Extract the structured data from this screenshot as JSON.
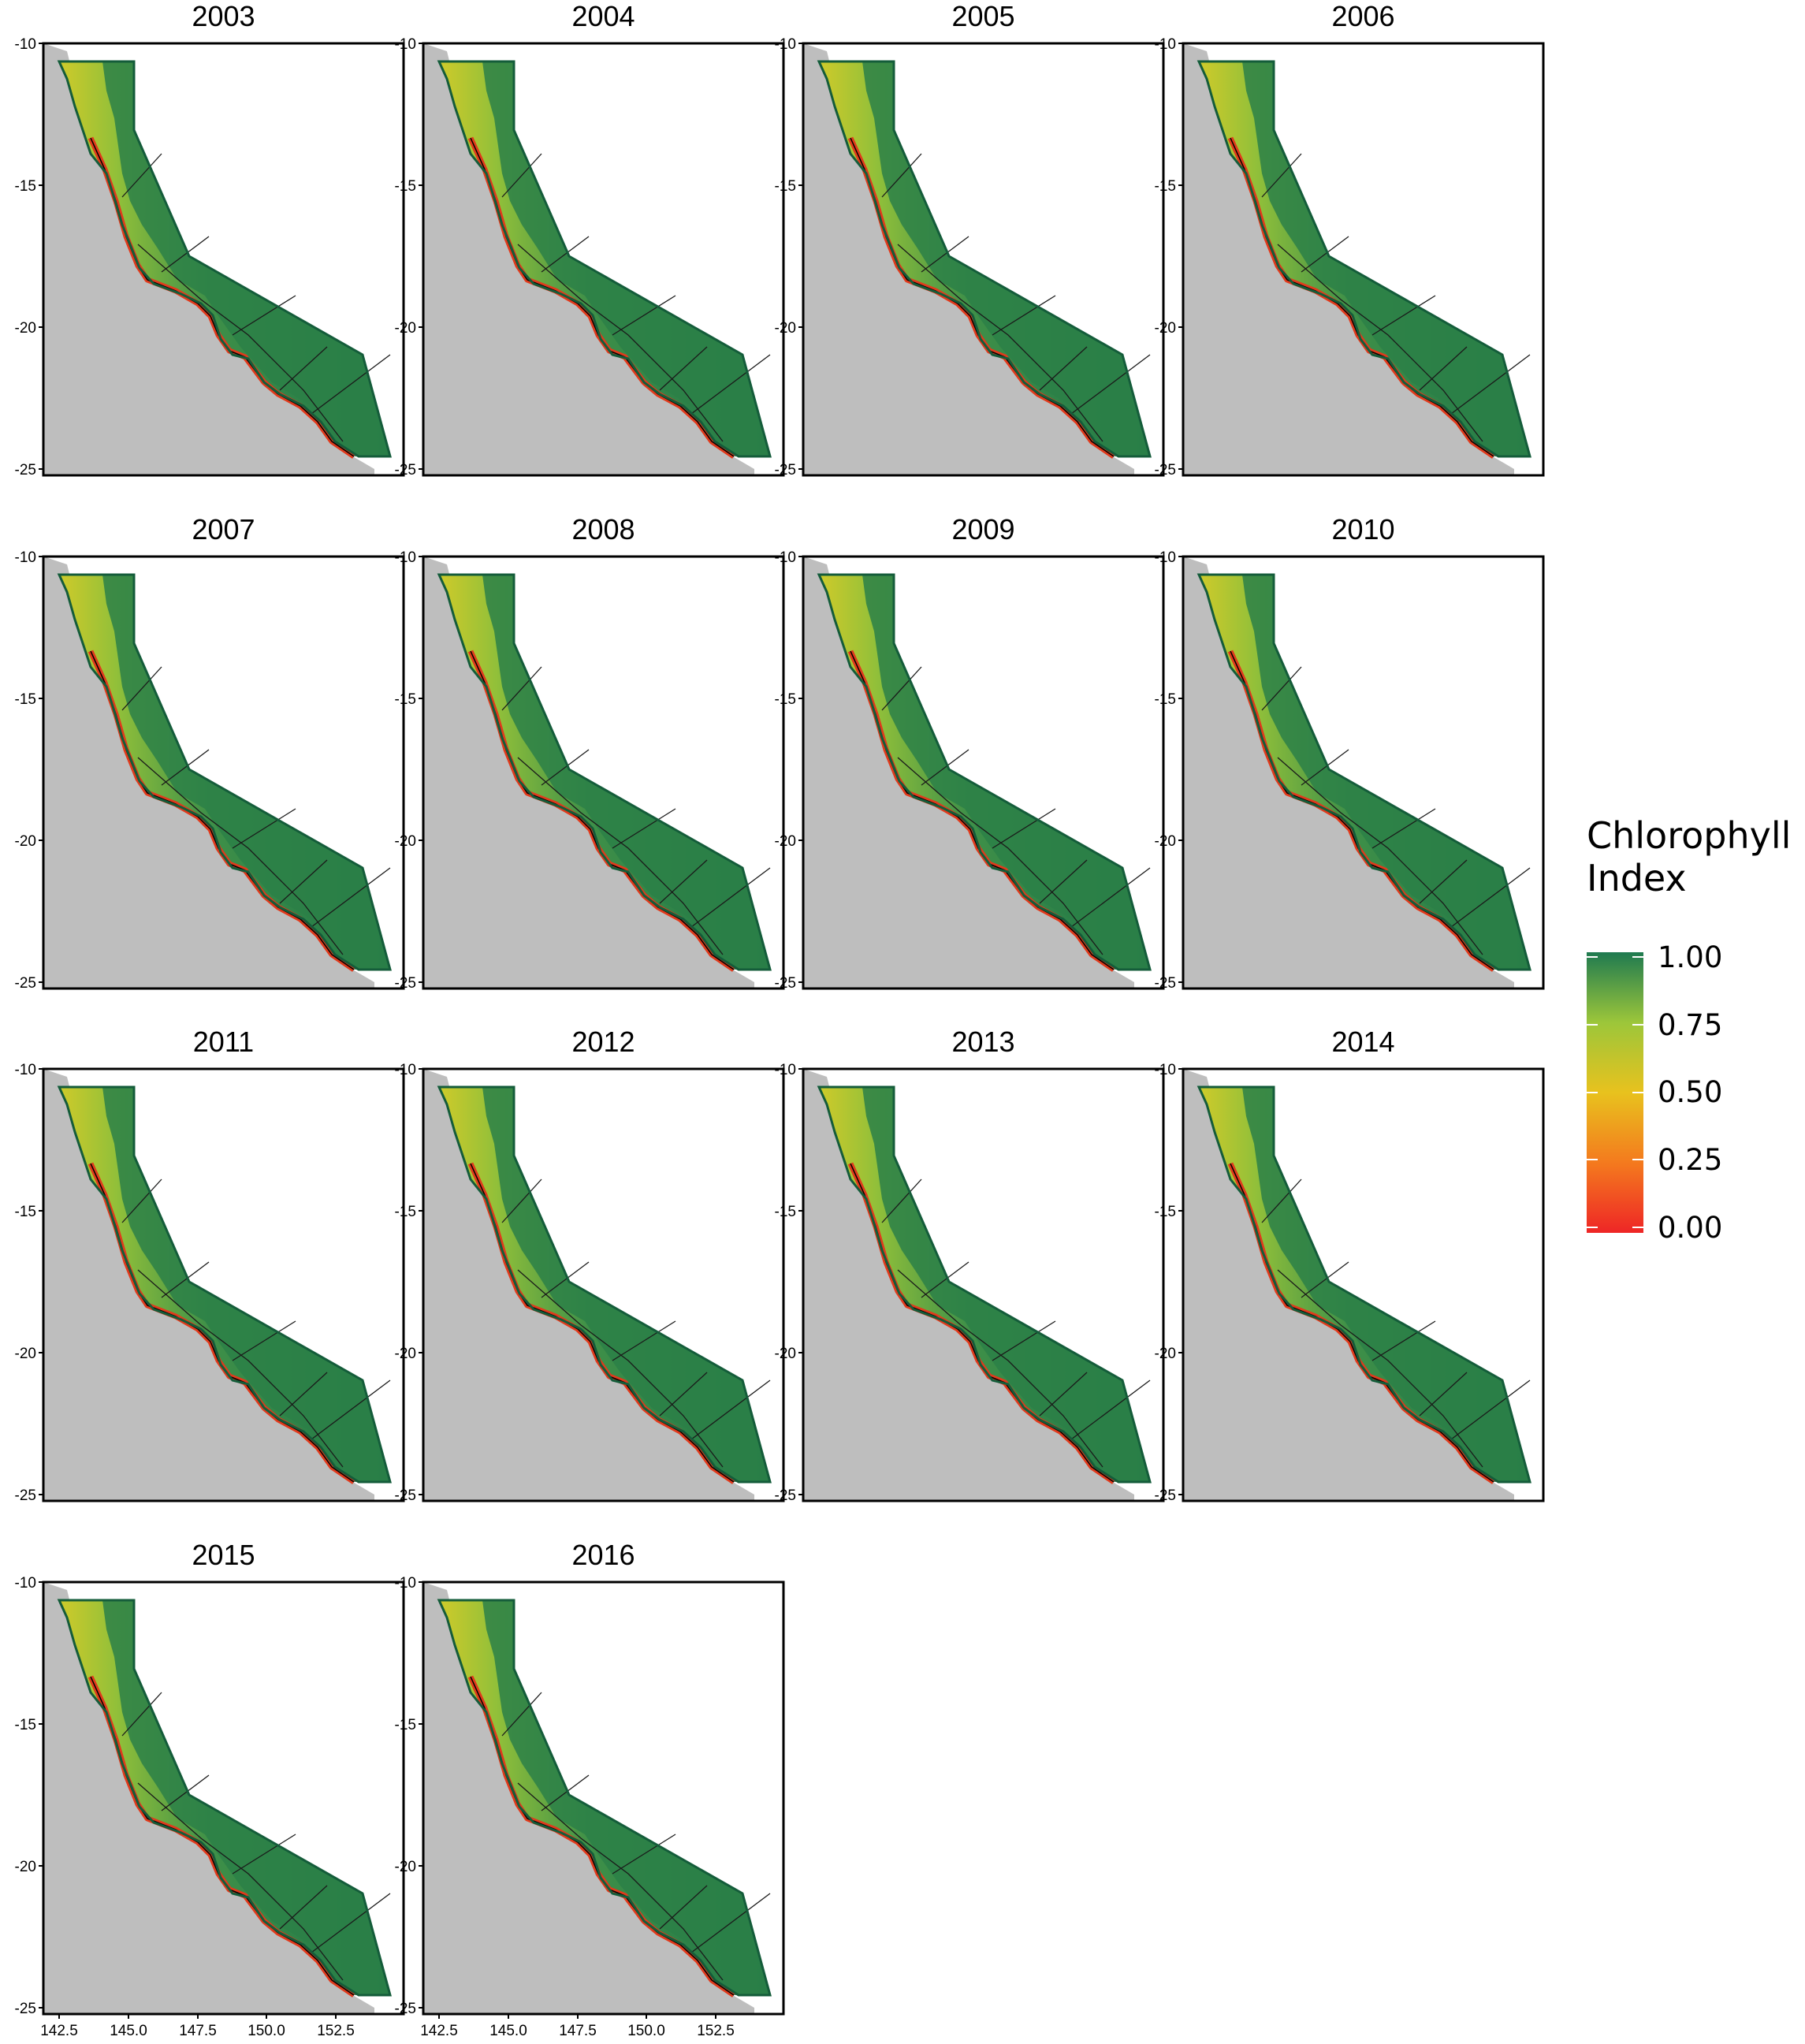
{
  "figure": {
    "panel_titles": [
      "2003",
      "2004",
      "2005",
      "2006",
      "2007",
      "2008",
      "2009",
      "2010",
      "2011",
      "2012",
      "2013",
      "2014",
      "2015",
      "2016"
    ],
    "y_axis_ticks": [
      "-10",
      "-15",
      "-20",
      "-25"
    ],
    "x_axis_ticks": [
      "142.5",
      "145.0",
      "147.5",
      "150.0",
      "152.5"
    ]
  },
  "legend": {
    "title_line1": "Chlorophyll",
    "title_line2": "Index",
    "labels": [
      "1.00",
      "0.75",
      "0.50",
      "0.25",
      "0.00"
    ],
    "colors": [
      "#ee2626",
      "#f47a1e",
      "#e8c21e",
      "#9cc63a",
      "#1f7a50"
    ]
  },
  "colors": {
    "land": "#bebebe",
    "region_outline": "#145c3a",
    "reef_green": "#2b8048",
    "coastal_red": "#e03a1c"
  }
}
